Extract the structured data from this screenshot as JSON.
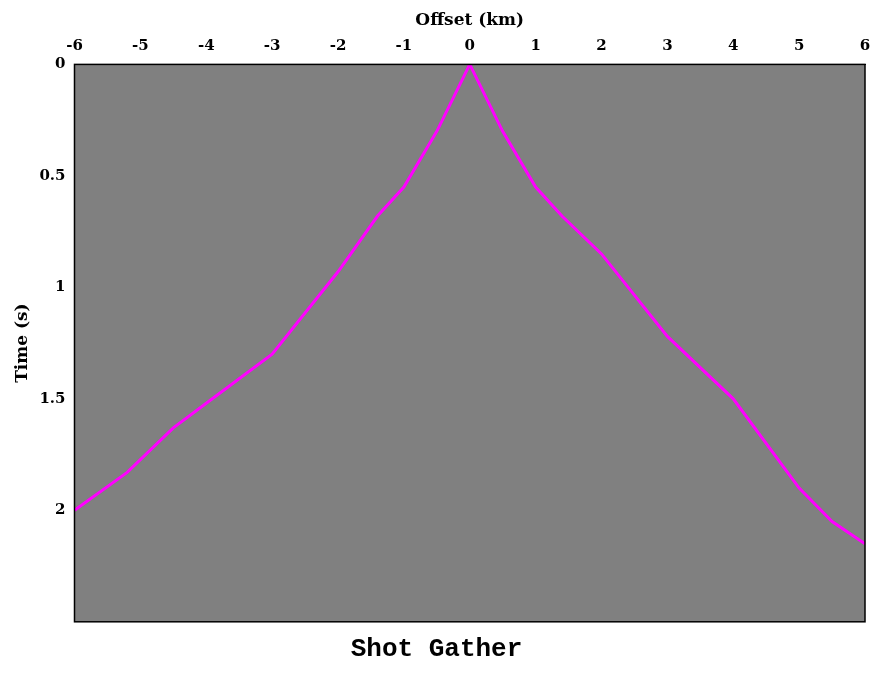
{
  "chart_data": {
    "type": "line",
    "title": "Shot Gather",
    "x_label": "Offset (km)",
    "y_label": "Time (s)",
    "x": [
      -6,
      -5.2,
      -4.5,
      -4,
      -3,
      -2,
      -1.4,
      -1,
      -0.5,
      0,
      0.5,
      1,
      1.4,
      2,
      3,
      4,
      5,
      5.5,
      6
    ],
    "series": [
      {
        "color": "#ff00ff",
        "values": [
          2.0,
          1.83,
          1.63,
          1.52,
          1.3,
          0.93,
          0.68,
          0.55,
          0.3,
          0.0,
          0.3,
          0.55,
          0.68,
          0.85,
          1.22,
          1.5,
          1.9,
          2.05,
          2.15
        ]
      }
    ],
    "xlim": [
      -6,
      6
    ],
    "xticks": [
      -6,
      -5,
      -4,
      -3,
      -2,
      -1,
      0,
      1,
      2,
      3,
      4,
      5,
      6
    ],
    "ylim": [
      0,
      2.5
    ],
    "yticks": [
      0,
      0.5,
      1,
      1.5,
      2
    ],
    "grid": false
  }
}
